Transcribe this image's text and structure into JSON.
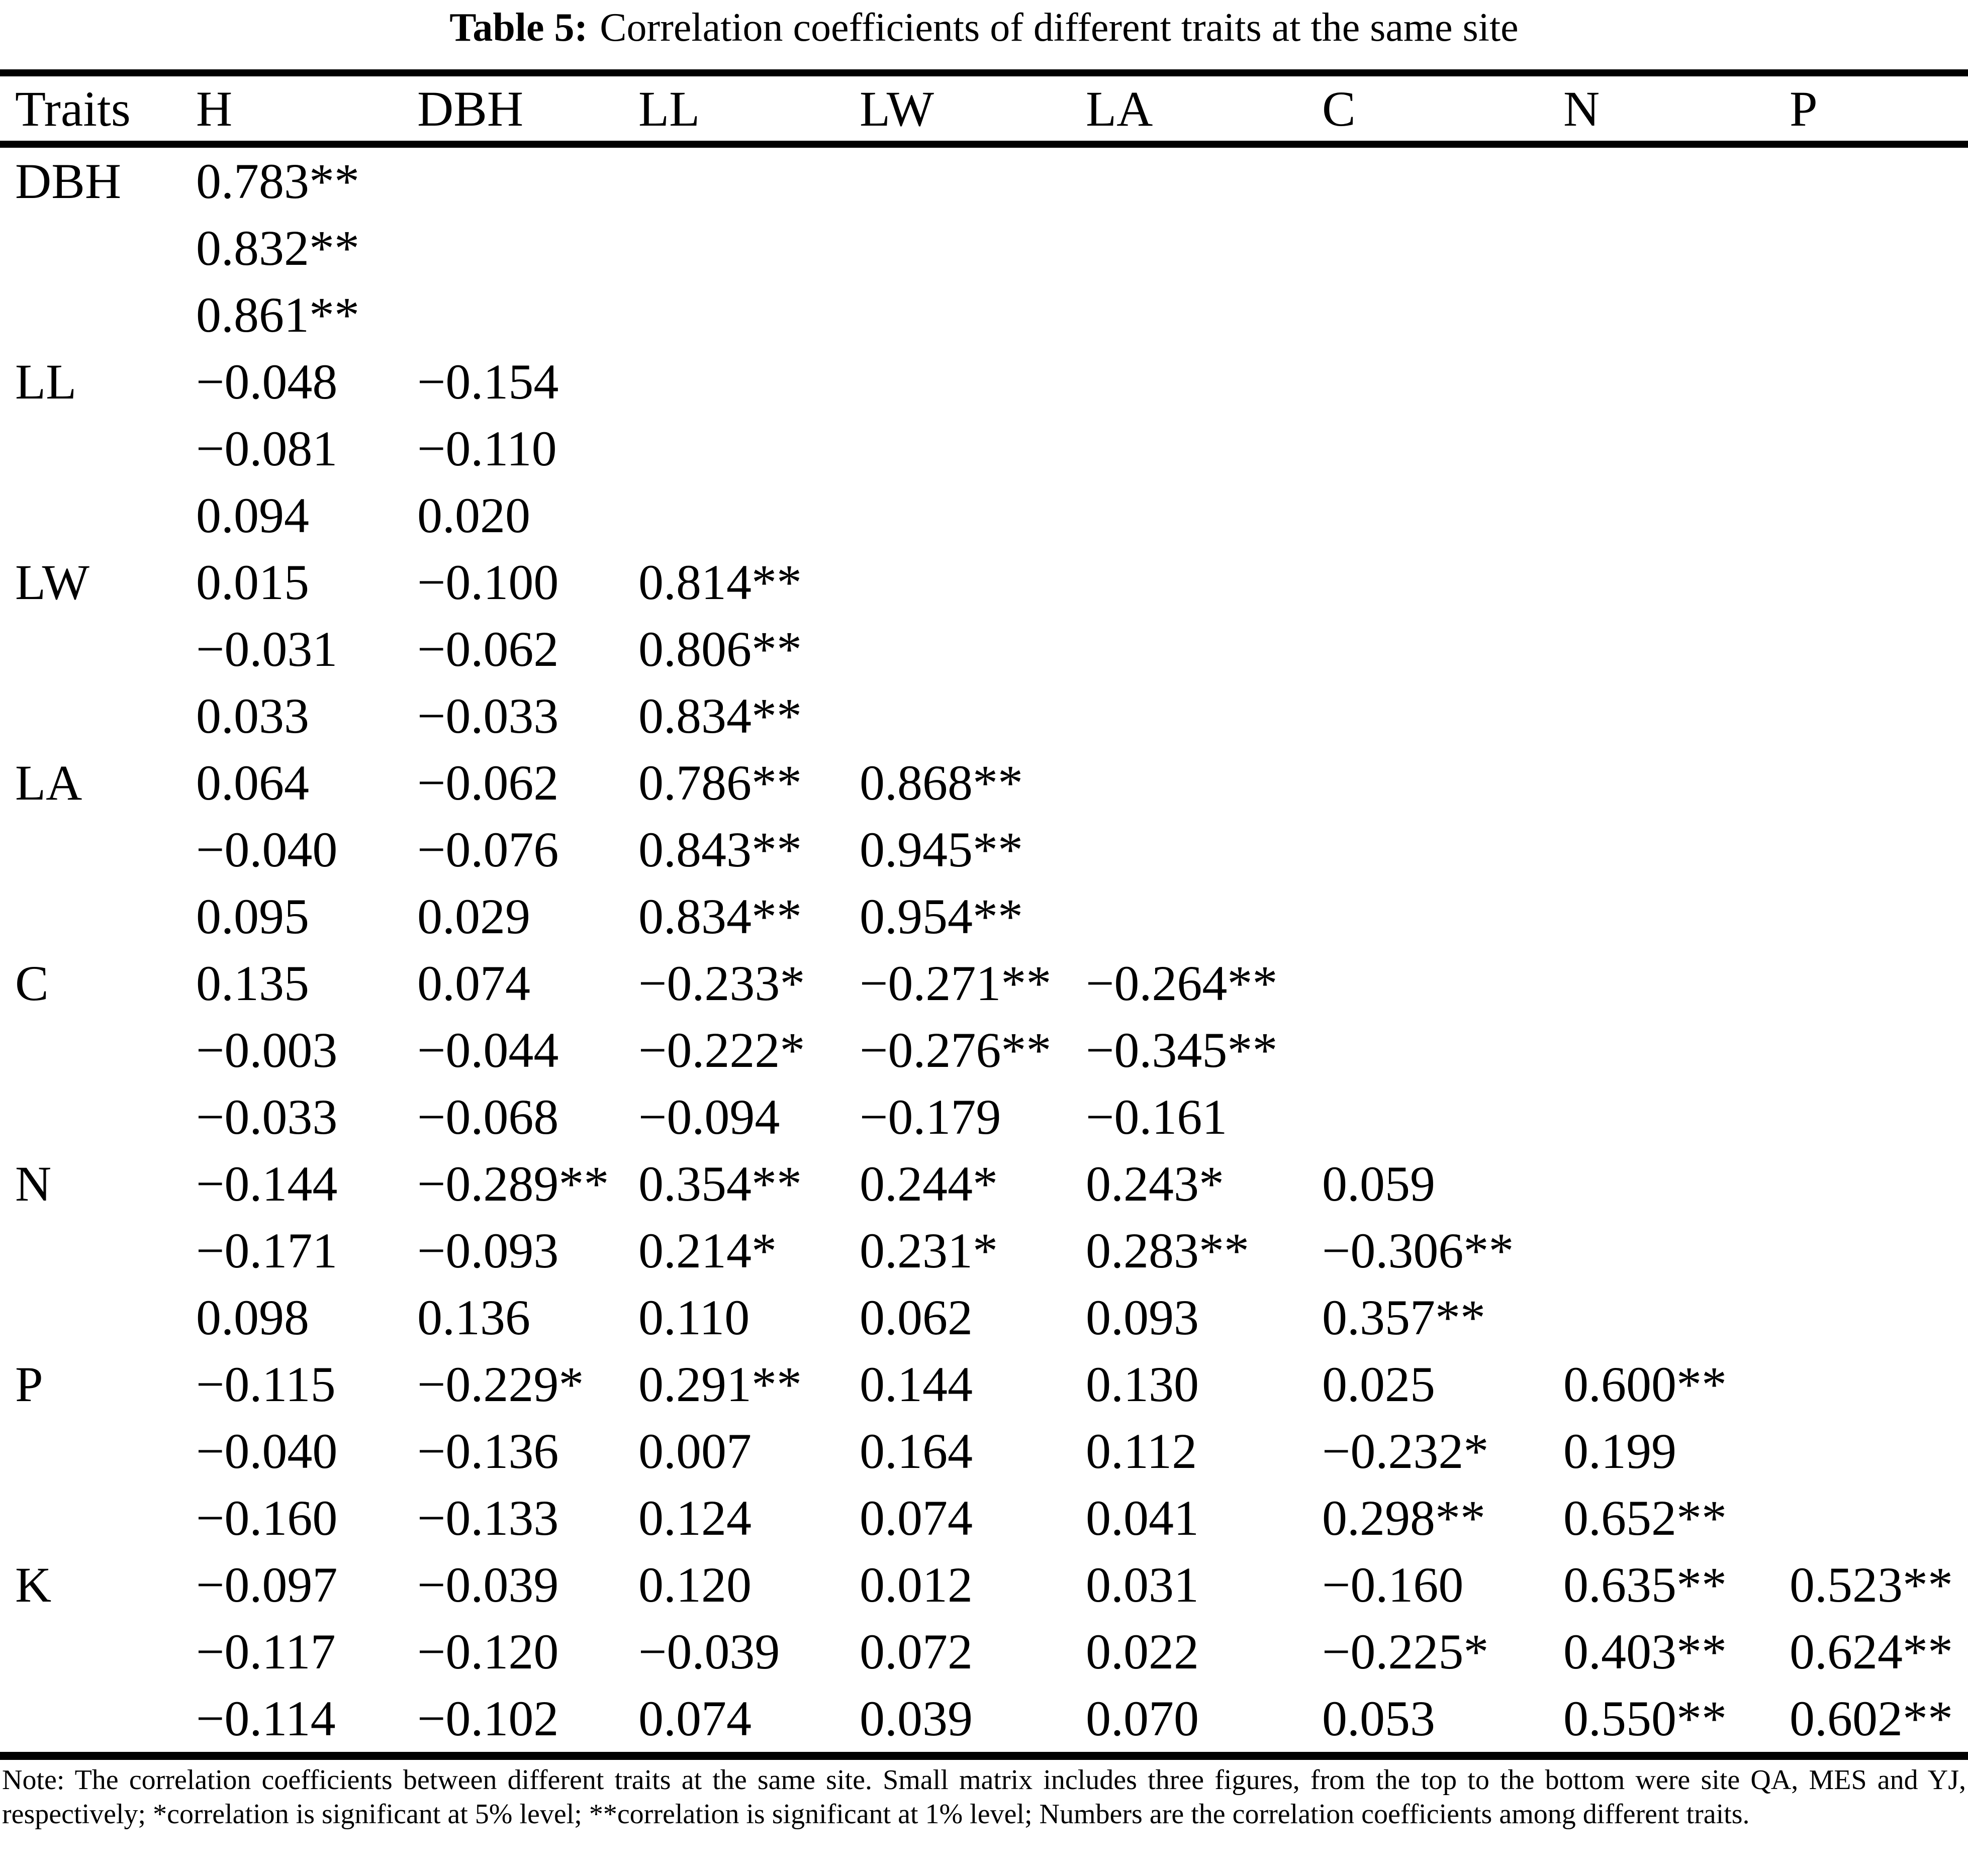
{
  "title": {
    "prefix": "Table 5:",
    "text": "Correlation coefficients of different traits at the same site"
  },
  "table": {
    "columns": [
      "Traits",
      "H",
      "DBH",
      "LL",
      "LW",
      "LA",
      "C",
      "N",
      "P"
    ],
    "sites_order_note": "QA, MES, YJ",
    "row_groups": [
      {
        "trait": "DBH",
        "lines": [
          [
            "0.783**"
          ],
          [
            "0.832**"
          ],
          [
            "0.861**"
          ]
        ]
      },
      {
        "trait": "LL",
        "lines": [
          [
            "−0.048",
            "−0.154"
          ],
          [
            "−0.081",
            "−0.110"
          ],
          [
            "0.094",
            "0.020"
          ]
        ]
      },
      {
        "trait": "LW",
        "lines": [
          [
            "0.015",
            "−0.100",
            "0.814**"
          ],
          [
            "−0.031",
            "−0.062",
            "0.806**"
          ],
          [
            "0.033",
            "−0.033",
            "0.834**"
          ]
        ]
      },
      {
        "trait": "LA",
        "lines": [
          [
            "0.064",
            "−0.062",
            "0.786**",
            "0.868**"
          ],
          [
            "−0.040",
            "−0.076",
            "0.843**",
            "0.945**"
          ],
          [
            "0.095",
            "0.029",
            "0.834**",
            "0.954**"
          ]
        ]
      },
      {
        "trait": "C",
        "lines": [
          [
            "0.135",
            "0.074",
            "−0.233*",
            "−0.271**",
            "−0.264**"
          ],
          [
            "−0.003",
            "−0.044",
            "−0.222*",
            "−0.276**",
            "−0.345**"
          ],
          [
            "−0.033",
            "−0.068",
            "−0.094",
            "−0.179",
            "−0.161"
          ]
        ]
      },
      {
        "trait": "N",
        "lines": [
          [
            "−0.144",
            "−0.289**",
            "0.354**",
            "0.244*",
            "0.243*",
            "0.059"
          ],
          [
            "−0.171",
            "−0.093",
            "0.214*",
            "0.231*",
            "0.283**",
            "−0.306**"
          ],
          [
            "0.098",
            "0.136",
            "0.110",
            "0.062",
            "0.093",
            "0.357**"
          ]
        ]
      },
      {
        "trait": "P",
        "lines": [
          [
            "−0.115",
            "−0.229*",
            "0.291**",
            "0.144",
            "0.130",
            "0.025",
            "0.600**"
          ],
          [
            "−0.040",
            "−0.136",
            "0.007",
            "0.164",
            "0.112",
            "−0.232*",
            "0.199"
          ],
          [
            "−0.160",
            "−0.133",
            "0.124",
            "0.074",
            "0.041",
            "0.298**",
            "0.652**"
          ]
        ]
      },
      {
        "trait": "K",
        "lines": [
          [
            "−0.097",
            "−0.039",
            "0.120",
            "0.012",
            "0.031",
            "−0.160",
            "0.635**",
            "0.523**"
          ],
          [
            "−0.117",
            "−0.120",
            "−0.039",
            "0.072",
            "0.022",
            "−0.225*",
            "0.403**",
            "0.624**"
          ],
          [
            "−0.114",
            "−0.102",
            "0.074",
            "0.039",
            "0.070",
            "0.053",
            "0.550**",
            "0.602**"
          ]
        ]
      }
    ]
  },
  "note": "Note: The correlation coefficients between different traits at the same site. Small matrix includes three figures, from the top to the bottom were site QA, MES and YJ, respectively; *correlation is significant at 5% level; **correlation is significant at 1% level; Numbers are the correlation coefficients among different traits."
}
